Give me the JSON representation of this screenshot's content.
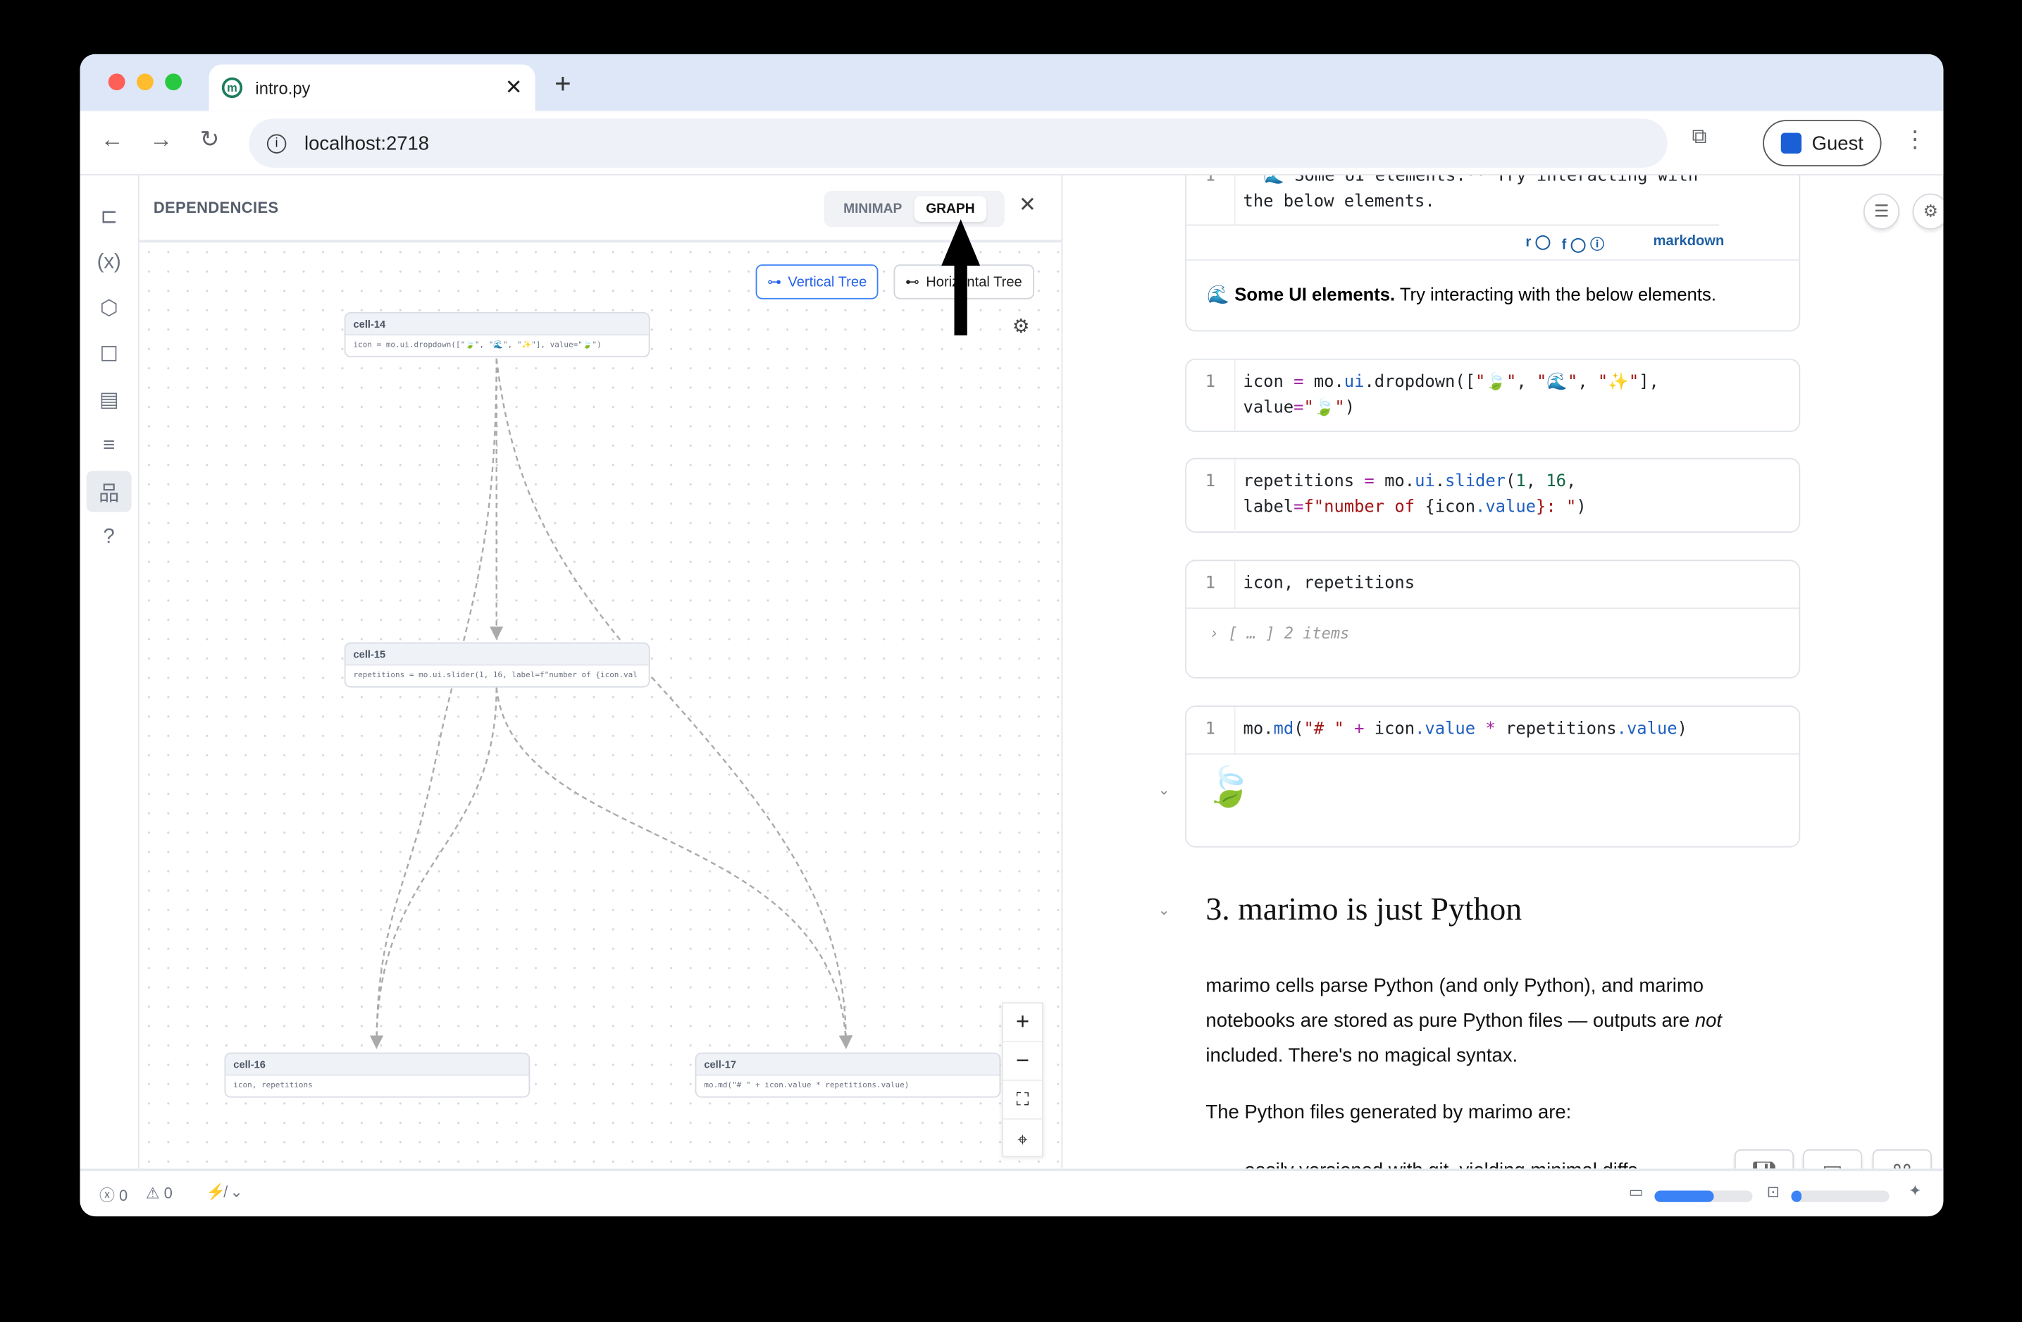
{
  "browser": {
    "tab_title": "intro.py",
    "favicon": "m",
    "url": "localhost:2718",
    "profile_label": "Guest",
    "traffic_colors": [
      "#fe5f57",
      "#febc2e",
      "#28c840"
    ]
  },
  "sidebar": {
    "items": [
      {
        "icon": "file-tree-icon",
        "glyph": "⊏"
      },
      {
        "icon": "variables-icon",
        "glyph": "(x)"
      },
      {
        "icon": "package-icon",
        "glyph": "⬡"
      },
      {
        "icon": "ai-bot-icon",
        "glyph": "☐"
      },
      {
        "icon": "documentation-icon",
        "glyph": "▤"
      },
      {
        "icon": "search-outline-icon",
        "glyph": "≡"
      },
      {
        "icon": "dependencies-icon",
        "glyph": "品",
        "active": true
      },
      {
        "icon": "help-icon",
        "glyph": "?"
      }
    ]
  },
  "dependencies": {
    "title": "DEPENDENCIES",
    "tabs": [
      "MINIMAP",
      "GRAPH"
    ],
    "active_tab": "GRAPH",
    "layout_buttons": [
      "Vertical Tree",
      "Horizontal Tree"
    ],
    "active_layout": "Vertical Tree",
    "nodes": [
      {
        "name": "cell-14",
        "code": "icon = mo.ui.dropdown([\"🍃\", \"🌊\", \"✨\"], value=\"🍃\")"
      },
      {
        "name": "cell-15",
        "code": "repetitions = mo.ui.slider(1, 16, label=f\"number of {icon.val"
      },
      {
        "name": "cell-16",
        "code": "icon, repetitions"
      },
      {
        "name": "cell-17",
        "code": "mo.md(\"# \" + icon.value * repetitions.value)"
      }
    ],
    "edges": [
      [
        "cell-14",
        "cell-15"
      ],
      [
        "cell-14",
        "cell-16"
      ],
      [
        "cell-14",
        "cell-17"
      ],
      [
        "cell-15",
        "cell-16"
      ],
      [
        "cell-15",
        "cell-17"
      ]
    ],
    "zoom_controls": [
      "+",
      "−",
      "⛶",
      "⌖"
    ]
  },
  "notebook": {
    "cell_md": {
      "line": "1",
      "code_line1": "\"\"🌊 Some UI elements.** Try interacting with",
      "code_line2": "the below elements.",
      "flags": [
        "r",
        "f"
      ],
      "lang": "markdown",
      "output_bold": "Some UI elements.",
      "output_rest": " Try interacting with the below elements.",
      "output_icon": "🌊"
    },
    "code_cells": [
      {
        "line": "1",
        "tokens": [
          [
            "icon",
            "kw"
          ],
          [
            " = ",
            "op"
          ],
          [
            "mo",
            "kw"
          ],
          [
            ".",
            "kw"
          ],
          [
            "ui",
            "fn"
          ],
          [
            ".dropdown([",
            "kw"
          ],
          [
            "\"🍃\"",
            "str"
          ],
          [
            ", ",
            "kw"
          ],
          [
            "\"🌊\"",
            "str"
          ],
          [
            ", ",
            "kw"
          ],
          [
            "\"✨\"",
            "str"
          ],
          [
            "],\n",
            "kw"
          ],
          [
            "value",
            "kw"
          ],
          [
            "=",
            "op"
          ],
          [
            "\"🍃\"",
            "str"
          ],
          [
            ")",
            "kw"
          ]
        ]
      },
      {
        "line": "1",
        "tokens": [
          [
            "repetitions",
            "kw"
          ],
          [
            " = ",
            "op"
          ],
          [
            "mo",
            "kw"
          ],
          [
            ".",
            "kw"
          ],
          [
            "ui",
            "fn"
          ],
          [
            ".",
            "kw"
          ],
          [
            "slider",
            "fn"
          ],
          [
            "(",
            "kw"
          ],
          [
            "1",
            "num"
          ],
          [
            ", ",
            "kw"
          ],
          [
            "16",
            "num"
          ],
          [
            ",\n",
            "kw"
          ],
          [
            "label",
            "kw"
          ],
          [
            "=",
            "op"
          ],
          [
            "f\"number of ",
            "str"
          ],
          [
            "{icon",
            "kw"
          ],
          [
            ".value",
            "attr"
          ],
          [
            "}: \"",
            "str"
          ],
          [
            ")",
            "kw"
          ]
        ]
      },
      {
        "line": "1",
        "tokens": [
          [
            "icon",
            "kw"
          ],
          [
            ", ",
            "kw"
          ],
          [
            "repetitions",
            "kw"
          ]
        ],
        "output": "› [ … ] 2 items"
      },
      {
        "line": "1",
        "tokens": [
          [
            "mo",
            "kw"
          ],
          [
            ".",
            "kw"
          ],
          [
            "md",
            "fn"
          ],
          [
            "(",
            "kw"
          ],
          [
            "\"# \"",
            "str"
          ],
          [
            " + ",
            "op"
          ],
          [
            "icon",
            "kw"
          ],
          [
            ".value",
            "attr"
          ],
          [
            " * ",
            "op"
          ],
          [
            "repetitions",
            "kw"
          ],
          [
            ".value",
            "attr"
          ],
          [
            ")",
            "kw"
          ]
        ],
        "output": "🍃"
      }
    ],
    "heading": "3. marimo is just Python",
    "para1_a": "marimo cells parse Python (and only Python), and marimo notebooks are stored as pure Python files — outputs are ",
    "para1_em": "not",
    "para1_b": " included. There's no magical syntax.",
    "para2": "The Python files generated by marimo are:",
    "para3": "easily versioned with git, yielding minimal diffs"
  },
  "footer": {
    "errors": "0",
    "warnings": "0",
    "memory_usage": 0.6,
    "cpu_usage": 0.1
  },
  "annotation": {
    "arrow_target": "GRAPH"
  }
}
